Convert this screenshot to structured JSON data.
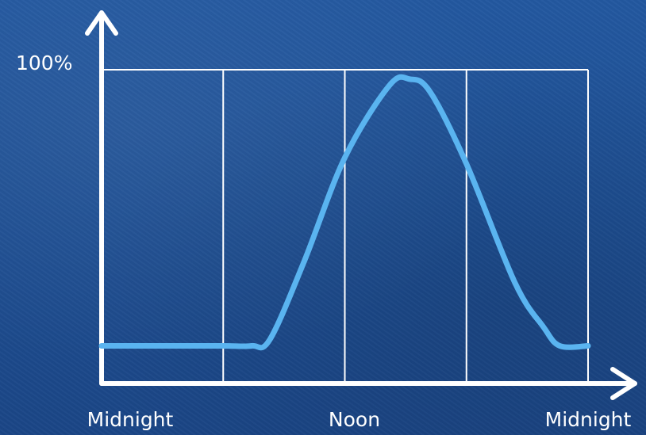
{
  "chart_data": {
    "type": "line",
    "title": "",
    "xlabel": "",
    "ylabel": "",
    "y_top_label": "100%",
    "x_tick_labels": [
      "Midnight",
      "Noon",
      "Midnight"
    ],
    "x_tick_values": [
      0,
      12,
      24
    ],
    "xlim": [
      0,
      24
    ],
    "ylim": [
      0,
      100
    ],
    "grid": true,
    "grid_x": [
      6,
      12,
      18,
      24
    ],
    "line_color": "#5ab4f0",
    "axis_color": "#ffffff",
    "series": [
      {
        "x": [
          0,
          3,
          6,
          7.4,
          8.3,
          10,
          12,
          14.2,
          15.2,
          16.2,
          18,
          20.4,
          21.8,
          22.6,
          24
        ],
        "y": [
          12,
          12,
          12,
          12,
          14,
          39,
          72,
          95,
          97,
          93,
          70,
          32,
          18,
          12,
          12
        ]
      }
    ]
  }
}
